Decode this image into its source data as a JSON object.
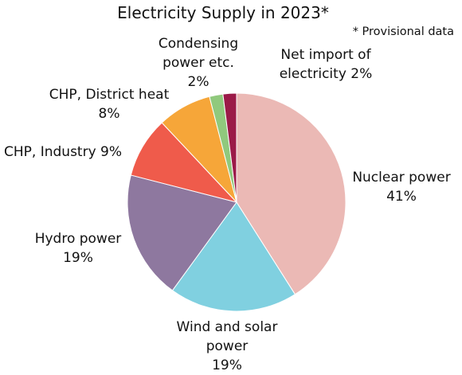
{
  "chart_data": {
    "type": "pie",
    "title": "Electricity Supply in 2023*",
    "note": "* Provisional data",
    "start_angle_deg": 0,
    "direction": "clockwise",
    "slices": [
      {
        "key": "nuclear",
        "label_lines": [
          "Nuclear power",
          "41%"
        ],
        "value": 41,
        "color": "#ebb9b5"
      },
      {
        "key": "wind-solar",
        "label_lines": [
          "Wind and solar",
          "power",
          "19%"
        ],
        "value": 19,
        "color": "#80d0e0"
      },
      {
        "key": "hydro",
        "label_lines": [
          "Hydro power",
          "19%"
        ],
        "value": 19,
        "color": "#8e789f"
      },
      {
        "key": "chp-industry",
        "label_lines": [
          "CHP, Industry  9%"
        ],
        "value": 9,
        "color": "#ef5b4b"
      },
      {
        "key": "chp-district-heat",
        "label_lines": [
          "CHP, District heat",
          "8%"
        ],
        "value": 8,
        "color": "#f6a639"
      },
      {
        "key": "condensing",
        "label_lines": [
          "Condensing",
          "power etc.",
          "2%"
        ],
        "value": 2,
        "color": "#90c97d"
      },
      {
        "key": "net-import",
        "label_lines": [
          "Net import of",
          "electricity 2%"
        ],
        "value": 2,
        "color": "#9b1a48"
      }
    ]
  }
}
